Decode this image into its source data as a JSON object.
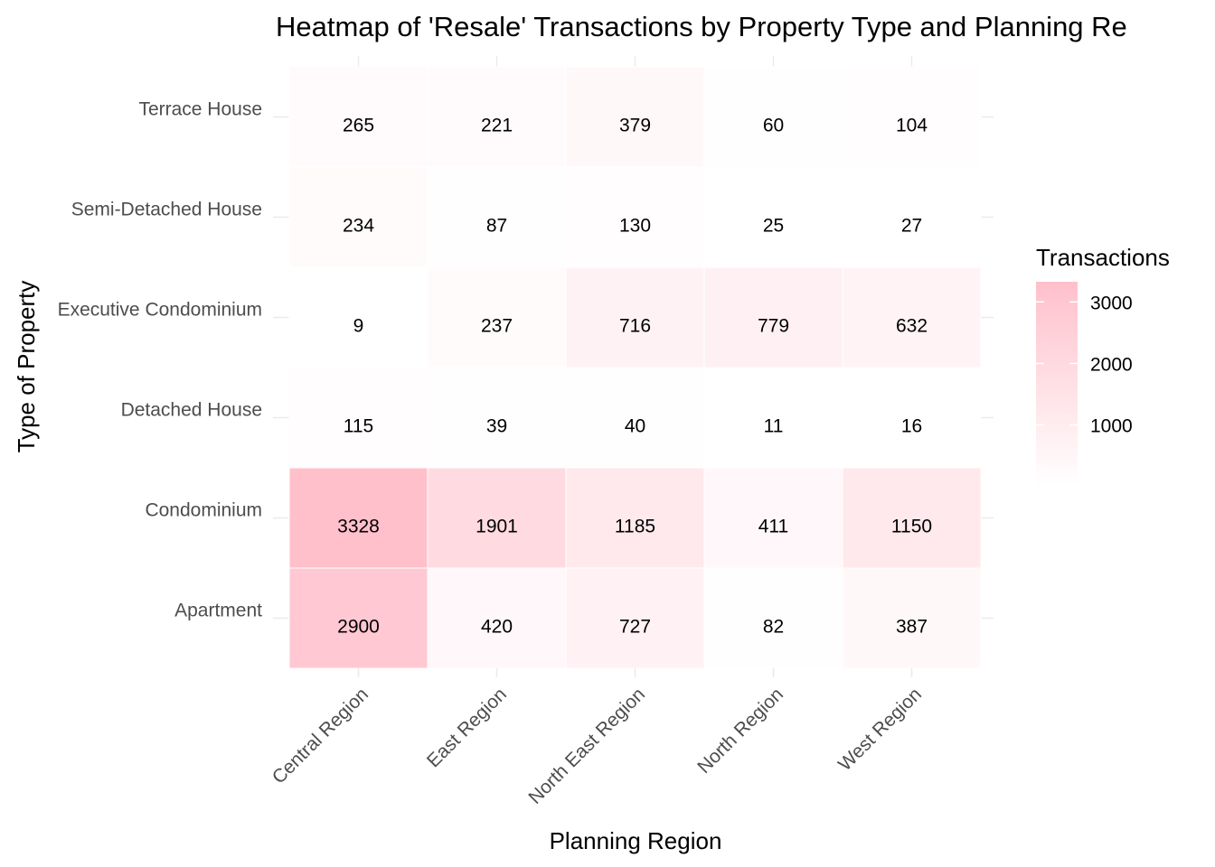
{
  "chart_data": {
    "type": "heatmap",
    "title": "Heatmap of 'Resale' Transactions by Property Type and Planning Re",
    "xlabel": "Planning Region",
    "ylabel": "Type of Property",
    "x_categories": [
      "Central Region",
      "East Region",
      "North East Region",
      "North Region",
      "West Region"
    ],
    "y_categories": [
      "Terrace House",
      "Semi-Detached House",
      "Executive Condominium",
      "Detached House",
      "Condominium",
      "Apartment"
    ],
    "values": [
      [
        265,
        221,
        379,
        60,
        104
      ],
      [
        234,
        87,
        130,
        25,
        27
      ],
      [
        9,
        237,
        716,
        779,
        632
      ],
      [
        115,
        39,
        40,
        11,
        16
      ],
      [
        3328,
        1901,
        1185,
        411,
        1150
      ],
      [
        2900,
        420,
        727,
        82,
        387
      ]
    ],
    "color_scale": {
      "low_color": "#ffffff",
      "high_color": "#ffc0cb",
      "min": 9,
      "max": 3328
    },
    "legend": {
      "title": "Transactions",
      "ticks": [
        3000,
        2000,
        1000
      ],
      "placement": "right"
    },
    "grid": true
  }
}
